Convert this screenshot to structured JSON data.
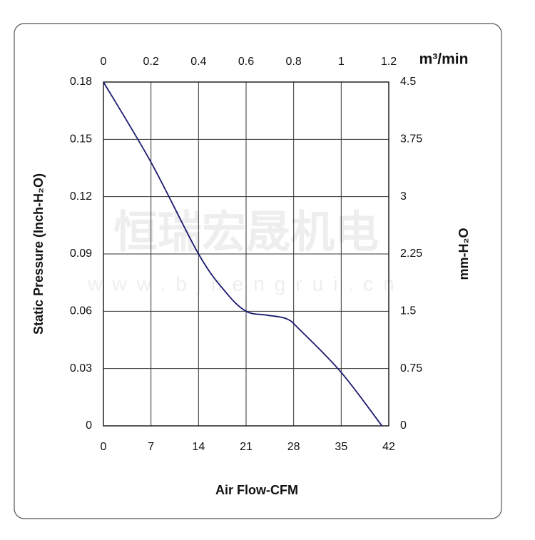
{
  "chart_data": {
    "type": "line",
    "xlabel": "Air Flow-CFM",
    "ylabel": "Static Pressure (Inch-H₂O)",
    "y2label": "mm-H₂O",
    "x2label": "m³/min",
    "watermark": "恒瑞宏晟机电",
    "watermark_url": "www.bjhengrui.cn",
    "x": [
      0,
      7,
      14,
      18,
      21,
      24,
      27,
      29,
      35,
      41
    ],
    "values": [
      0.18,
      0.138,
      0.09,
      0.07,
      0.06,
      0.058,
      0.056,
      0.05,
      0.028,
      0
    ],
    "color": "#1a1a6e",
    "xlim": [
      0,
      42
    ],
    "xticks": [
      0,
      7,
      14,
      21,
      28,
      35,
      42
    ],
    "x2lim": [
      0,
      1.2
    ],
    "x2ticks": [
      0,
      0.2,
      0.4,
      0.6,
      0.8,
      1,
      1.2
    ],
    "ylim": [
      0,
      0.18
    ],
    "yticks": [
      0,
      0.03,
      0.06,
      0.09,
      0.12,
      0.15,
      0.18
    ],
    "y2lim": [
      0,
      4.5
    ],
    "y2ticks": [
      0,
      0.75,
      1.5,
      2.25,
      3,
      3.75,
      4.5
    ],
    "grid": true
  }
}
